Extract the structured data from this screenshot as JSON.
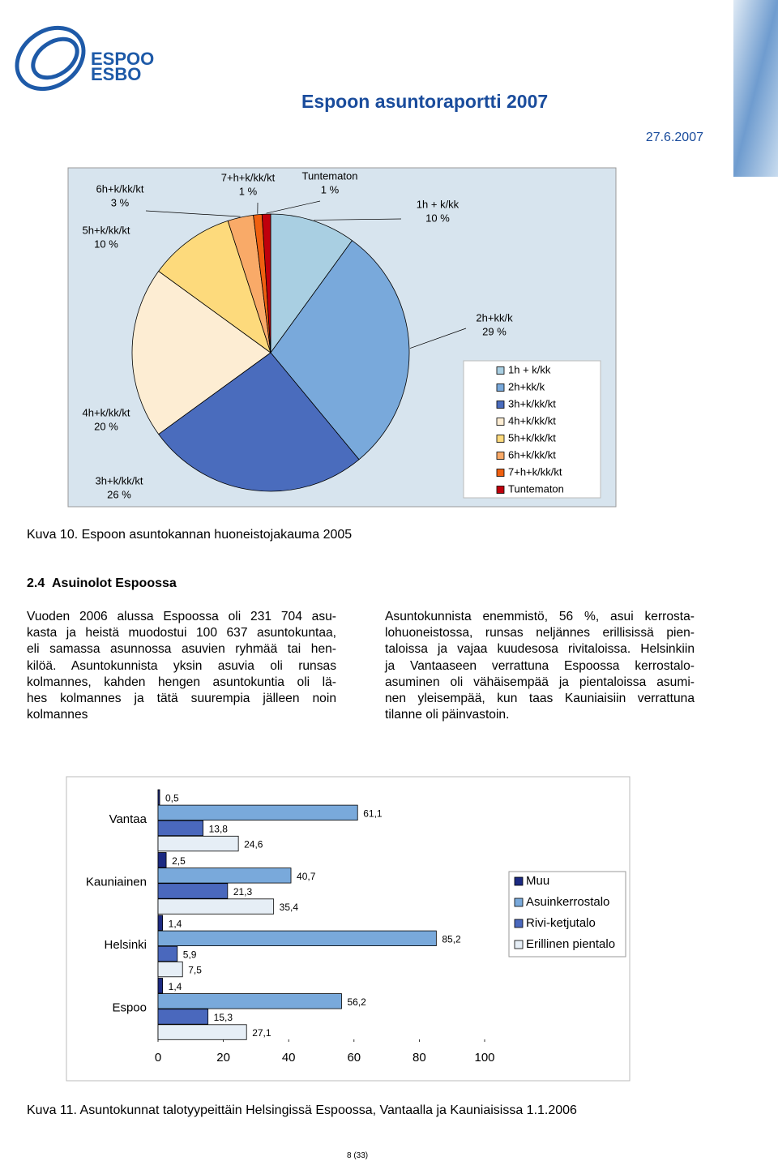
{
  "header": {
    "logo": [
      "ESPOO",
      "ESBO"
    ],
    "title": "Espoon asuntoraportti 2007",
    "date": "27.6.2007"
  },
  "chart_data": [
    {
      "type": "pie",
      "categories": [
        "1h + k/kk",
        "2h+kk/k",
        "3h+k/kk/kt",
        "4h+k/kk/kt",
        "5h+k/kk/kt",
        "6h+k/kk/kt",
        "7+h+k/kk/kt",
        "Tuntematon"
      ],
      "values": [
        10,
        29,
        26,
        20,
        10,
        3,
        1,
        1
      ],
      "value_labels": [
        "10 %",
        "29 %",
        "26 %",
        "20 %",
        "10 %",
        "3 %",
        "1 %",
        "1 %"
      ],
      "colors": [
        "#a9cfe2",
        "#79a9db",
        "#4a6cbd",
        "#fdedd3",
        "#fdda7c",
        "#f9aa68",
        "#f06010",
        "#c0000c"
      ],
      "legend": "right"
    },
    {
      "type": "bar",
      "orientation": "horizontal",
      "categories": [
        "Vantaa",
        "Kauniainen",
        "Helsinki",
        "Espoo"
      ],
      "series": [
        {
          "name": "Muu",
          "color": "#1c2a82",
          "values": [
            0.5,
            2.5,
            1.4,
            1.4
          ],
          "value_labels": [
            "0,5",
            "2,5",
            "1,4",
            "1,4"
          ]
        },
        {
          "name": "Asuinkerrostalo",
          "color": "#79a9db",
          "values": [
            61.1,
            40.7,
            85.2,
            56.2
          ],
          "value_labels": [
            "61,1",
            "40,7",
            "85,2",
            "56,2"
          ]
        },
        {
          "name": "Rivi-ketjutalo",
          "color": "#4a68bd",
          "values": [
            13.8,
            21.3,
            5.9,
            15.3
          ],
          "value_labels": [
            "13,8",
            "21,3",
            "5,9",
            "15,3"
          ]
        },
        {
          "name": "Erillinen pientalo",
          "color": "#e6eef6",
          "values": [
            24.6,
            35.4,
            7.5,
            27.1
          ],
          "value_labels": [
            "24,6",
            "35,4",
            "7,5",
            "27,1"
          ]
        }
      ],
      "xlim": [
        0,
        100
      ],
      "xticks": [
        0,
        20,
        40,
        60,
        80,
        100
      ],
      "legend": "right"
    }
  ],
  "figure_captions": [
    "Kuva 10. Espoon asuntokannan huoneistojakauma 2005",
    "Kuva 11. Asuntokunnat talotyypeittäin Helsingissä Espoossa, Vantaalla ja Kauniaisissa 1.1.2006"
  ],
  "section": {
    "number": "2.4",
    "title": "Asuinolot Espoossa",
    "columns": [
      [
        "Vuoden 2006 alussa Espoossa oli 231 704 asu-",
        "kasta ja heistä muodostui 100 637 asuntokuntaa,",
        "eli samassa asunnossa asuvien ryhmää tai hen-",
        "kilöä. Asuntokunnista yksin asuvia oli runsas",
        "kolmannes, kahden hengen asuntokuntia oli lä-",
        "hes kolmannes ja tätä suurempia jälleen noin",
        "kolmannes"
      ],
      [
        "Asuntokunnista enemmistö, 56 %, asui kerrosta-",
        "lohuoneistossa, runsas neljännes erillisissä pien-",
        "taloissa ja vajaa kuudesosa rivitaloissa. Helsinkiin",
        "ja Vantaaseen verrattuna Espoossa kerrostalo-",
        "asuminen oli vähäisempää ja pientaloissa asumi-",
        "nen yleisempää, kun taas Kauniaisiin verrattuna",
        "tilanne oli päinvastoin."
      ]
    ]
  },
  "page_number": "8 (33)"
}
